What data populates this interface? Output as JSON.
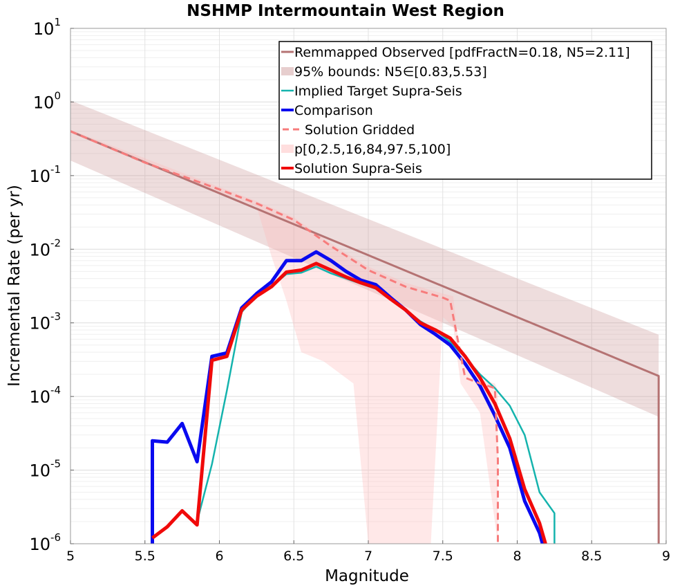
{
  "chart_data": {
    "type": "line",
    "title": "NSHMP Intermountain West Region",
    "xlabel": "Magnitude",
    "ylabel": "Incremental Rate (per yr)",
    "xlim": [
      5,
      9
    ],
    "ylim": [
      1e-06,
      10
    ],
    "yscale": "log",
    "grid": true,
    "legend_position": "top-right",
    "x_ticks": [
      "5",
      "5.5",
      "6",
      "6.5",
      "7",
      "7.5",
      "8",
      "8.5",
      "9"
    ],
    "y_ticks": [
      {
        "value": 1e-06,
        "base": "10",
        "exp": "-6"
      },
      {
        "value": 1e-05,
        "base": "10",
        "exp": "-5"
      },
      {
        "value": 0.0001,
        "base": "10",
        "exp": "-4"
      },
      {
        "value": 0.001,
        "base": "10",
        "exp": "-3"
      },
      {
        "value": 0.01,
        "base": "10",
        "exp": "-2"
      },
      {
        "value": 0.1,
        "base": "10",
        "exp": "-1"
      },
      {
        "value": 1,
        "base": "10",
        "exp": "0"
      },
      {
        "value": 10,
        "base": "10",
        "exp": "1"
      }
    ],
    "series": [
      {
        "name": "Remmapped Observed [pdfFractN=0.18, N5=2.11]",
        "kind": "line",
        "color": "#b57373",
        "width": 3,
        "points": [
          [
            5.0,
            0.4
          ],
          [
            8.95,
            0.00019
          ],
          [
            8.95,
            1e-06
          ]
        ]
      },
      {
        "name": "95% bounds: N5∈[0.83,5.53]",
        "kind": "band",
        "color": "#cc9999",
        "opacity": 0.33,
        "upper": [
          [
            5.0,
            1.05
          ],
          [
            8.95,
            0.00069
          ]
        ],
        "lower": [
          [
            5.0,
            0.16
          ],
          [
            8.95,
            5.3e-05
          ]
        ]
      },
      {
        "name": "Implied Target Supra-Seis",
        "kind": "line",
        "color": "#14b3ad",
        "width": 2.5,
        "points": [
          [
            5.85,
            2e-06
          ],
          [
            5.95,
            1.2e-05
          ],
          [
            6.05,
            0.00012
          ],
          [
            6.15,
            0.0014
          ],
          [
            6.25,
            0.0024
          ],
          [
            6.35,
            0.0031
          ],
          [
            6.45,
            0.0046
          ],
          [
            6.55,
            0.0048
          ],
          [
            6.65,
            0.0058
          ],
          [
            6.75,
            0.0047
          ],
          [
            6.85,
            0.004
          ],
          [
            6.95,
            0.0034
          ],
          [
            7.05,
            0.0029
          ],
          [
            7.15,
            0.0021
          ],
          [
            7.25,
            0.0015
          ],
          [
            7.35,
            0.00105
          ],
          [
            7.45,
            0.0008
          ],
          [
            7.55,
            0.00055
          ],
          [
            7.65,
            0.00034
          ],
          [
            7.75,
            0.0002
          ],
          [
            7.85,
            0.00013
          ],
          [
            7.95,
            7.5e-05
          ],
          [
            8.05,
            3e-05
          ],
          [
            8.15,
            5e-06
          ],
          [
            8.25,
            2.6e-06
          ],
          [
            8.25,
            1e-06
          ]
        ]
      },
      {
        "name": "Comparison",
        "kind": "line",
        "color": "#0a0aef",
        "width": 5,
        "points": [
          [
            5.55,
            1e-06
          ],
          [
            5.55,
            2.5e-05
          ],
          [
            5.65,
            2.4e-05
          ],
          [
            5.75,
            4.3e-05
          ],
          [
            5.85,
            1.3e-05
          ],
          [
            5.95,
            0.00035
          ],
          [
            6.05,
            0.00039
          ],
          [
            6.15,
            0.0016
          ],
          [
            6.25,
            0.0025
          ],
          [
            6.35,
            0.0036
          ],
          [
            6.45,
            0.007
          ],
          [
            6.55,
            0.007
          ],
          [
            6.65,
            0.0092
          ],
          [
            6.75,
            0.007
          ],
          [
            6.85,
            0.005
          ],
          [
            6.95,
            0.0038
          ],
          [
            7.05,
            0.0033
          ],
          [
            7.15,
            0.0022
          ],
          [
            7.25,
            0.0015
          ],
          [
            7.35,
            0.00095
          ],
          [
            7.45,
            0.0007
          ],
          [
            7.55,
            0.0005
          ],
          [
            7.65,
            0.00028
          ],
          [
            7.75,
            0.00014
          ],
          [
            7.85,
            5.5e-05
          ],
          [
            7.95,
            2e-05
          ],
          [
            8.05,
            3.8e-06
          ],
          [
            8.15,
            1.4e-06
          ],
          [
            8.17,
            1e-06
          ]
        ]
      },
      {
        "name": "Solution Gridded",
        "kind": "dashed",
        "color": "#f77c7c",
        "width": 3,
        "points": [
          [
            5.0,
            0.4
          ],
          [
            5.5,
            0.15
          ],
          [
            6.0,
            0.065
          ],
          [
            6.25,
            0.042
          ],
          [
            6.5,
            0.025
          ],
          [
            6.75,
            0.011
          ],
          [
            7.0,
            0.0052
          ],
          [
            7.25,
            0.0031
          ],
          [
            7.5,
            0.0022
          ],
          [
            7.55,
            0.002
          ],
          [
            7.65,
            0.00018
          ],
          [
            7.75,
            0.00015
          ],
          [
            7.85,
            0.00013
          ],
          [
            7.87,
            1.4e-05
          ],
          [
            7.87,
            1e-06
          ]
        ]
      },
      {
        "name": "p[0,2.5,16,84,97.5,100]",
        "kind": "band",
        "color": "#ffb8b8",
        "opacity": 0.32,
        "upper": [
          [
            5.0,
            0.42
          ],
          [
            6.0,
            0.07
          ],
          [
            6.25,
            0.045
          ],
          [
            6.5,
            0.027
          ],
          [
            6.75,
            0.012
          ],
          [
            7.0,
            0.0058
          ],
          [
            7.25,
            0.0035
          ],
          [
            7.5,
            0.0025
          ],
          [
            7.57,
            0.0023
          ],
          [
            7.62,
            0.0003
          ],
          [
            7.75,
            0.00017
          ],
          [
            7.85,
            0.00015
          ],
          [
            7.87,
            0.00012
          ]
        ],
        "lower": [
          [
            5.0,
            0.38
          ],
          [
            6.0,
            0.06
          ],
          [
            6.25,
            0.038
          ],
          [
            6.35,
            0.008
          ],
          [
            6.45,
            0.002
          ],
          [
            6.55,
            0.0004
          ],
          [
            6.7,
            0.0003
          ],
          [
            6.9,
            0.00015
          ],
          [
            7.0,
            1e-06
          ],
          [
            7.42,
            1e-06
          ],
          [
            7.5,
            0.0012
          ],
          [
            7.57,
            0.0009
          ],
          [
            7.62,
            0.00015
          ],
          [
            7.75,
            6e-05
          ],
          [
            7.87,
            1e-06
          ]
        ]
      },
      {
        "name": "Solution Supra-Seis",
        "kind": "line",
        "color": "#f00a0a",
        "width": 5,
        "points": [
          [
            5.55,
            1.2e-06
          ],
          [
            5.65,
            1.7e-06
          ],
          [
            5.75,
            2.8e-06
          ],
          [
            5.85,
            1.8e-06
          ],
          [
            5.95,
            0.00031
          ],
          [
            6.05,
            0.00035
          ],
          [
            6.15,
            0.0015
          ],
          [
            6.25,
            0.0023
          ],
          [
            6.35,
            0.0031
          ],
          [
            6.45,
            0.0049
          ],
          [
            6.55,
            0.0052
          ],
          [
            6.65,
            0.0064
          ],
          [
            6.75,
            0.0052
          ],
          [
            6.85,
            0.0042
          ],
          [
            6.95,
            0.0035
          ],
          [
            7.05,
            0.003
          ],
          [
            7.15,
            0.0021
          ],
          [
            7.25,
            0.0015
          ],
          [
            7.35,
            0.001
          ],
          [
            7.45,
            0.0008
          ],
          [
            7.55,
            0.00062
          ],
          [
            7.65,
            0.00035
          ],
          [
            7.75,
            0.00018
          ],
          [
            7.85,
            8e-05
          ],
          [
            7.95,
            2.7e-05
          ],
          [
            8.05,
            5.5e-06
          ],
          [
            8.15,
            1.9e-06
          ],
          [
            8.19,
            1e-06
          ]
        ]
      }
    ],
    "legend_order": [
      0,
      1,
      2,
      3,
      4,
      5,
      6
    ]
  }
}
